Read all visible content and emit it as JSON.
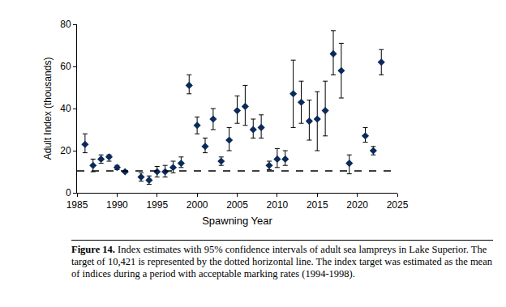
{
  "chart_data": {
    "type": "scatter",
    "x_title": "Spawning Year",
    "y_title": "Adult Index (thousands)",
    "x": [
      1986,
      1987,
      1988,
      1989,
      1990,
      1991,
      1993,
      1994,
      1995,
      1996,
      1997,
      1998,
      1999,
      2000,
      2001,
      2002,
      2003,
      2004,
      2005,
      2006,
      2007,
      2008,
      2009,
      2010,
      2011,
      2012,
      2013,
      2014,
      2015,
      2016,
      2017,
      2018,
      2019,
      2021,
      2022,
      2023
    ],
    "values": [
      23,
      13,
      16,
      17,
      12,
      10,
      7.5,
      6,
      10,
      10,
      12,
      14,
      51,
      32,
      22,
      35,
      15,
      25,
      39,
      41,
      30,
      31,
      13,
      16,
      16,
      47,
      43,
      34,
      35,
      39,
      66,
      58,
      14,
      27,
      20,
      62
    ],
    "ci_low": [
      19,
      10,
      14,
      15,
      11,
      9.5,
      5.5,
      4,
      7.5,
      7.5,
      9.5,
      12,
      47,
      28,
      19,
      30,
      13,
      20,
      33,
      32,
      26,
      26,
      11,
      12,
      13,
      31,
      33,
      25,
      20,
      27,
      56,
      45,
      9,
      24,
      18,
      56
    ],
    "ci_high": [
      28,
      16,
      18,
      18,
      13,
      10.5,
      9.5,
      8,
      12.5,
      13,
      15,
      17,
      56,
      36,
      26,
      40,
      17,
      31,
      46,
      51,
      35,
      37,
      15,
      21,
      20,
      63,
      53,
      44,
      48,
      53,
      77,
      71,
      18,
      31,
      22,
      68
    ],
    "color": "#0b2a5b",
    "marker": "diamond",
    "target": 10.421,
    "line_style": "dash",
    "xlim": [
      1985,
      2025
    ],
    "xticks": [
      1985,
      1990,
      1995,
      2000,
      2005,
      2010,
      2015,
      2020,
      2025
    ],
    "ylim": [
      0,
      80
    ],
    "yticks": [
      0,
      20,
      40,
      60,
      80
    ],
    "grid": false,
    "caption_label": "Figure 14.",
    "caption": "Index estimates with 95% confidence intervals of adult sea lampreys in Lake Superior. The target of 10,421 is represented by the dotted horizontal line. The index target was estimated as the mean of indices during a period with acceptable marking rates (1994-1998)."
  }
}
